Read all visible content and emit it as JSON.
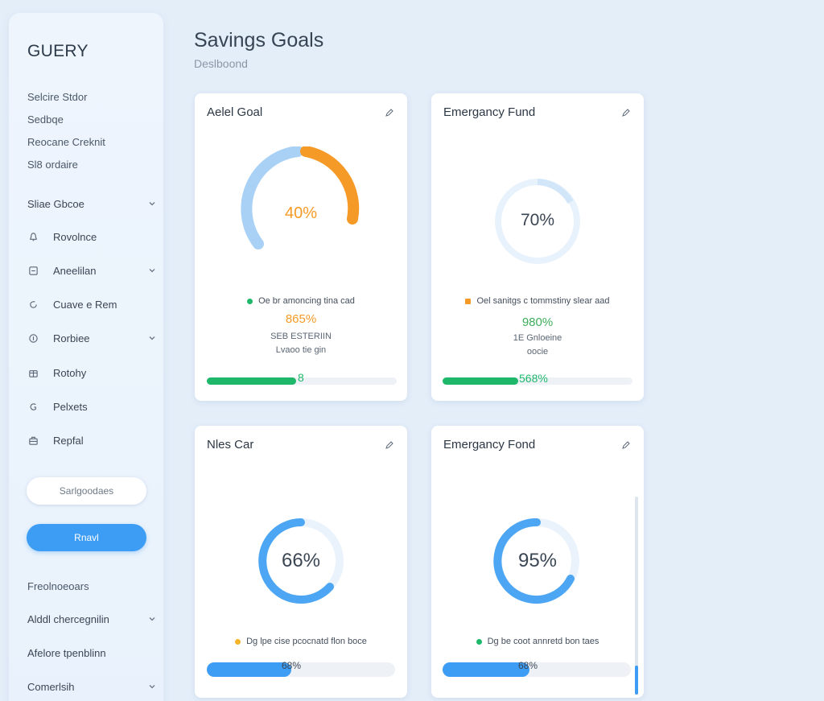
{
  "app": {
    "brand": "GUERY",
    "title": "Savings Goals",
    "subtitle": "Deslboond"
  },
  "sidebar": {
    "top_links": [
      "Selcire Stdor",
      "Sedbqe",
      "Reocane Creknit",
      "Sl8 ordaire"
    ],
    "section_label": "Sliae Gbcoe",
    "items": [
      {
        "label": "Rovolnce",
        "icon": "bell-icon"
      },
      {
        "label": "Aneelilan",
        "icon": "square-icon"
      },
      {
        "label": "Cuave e Rem",
        "icon": "cycle-icon"
      },
      {
        "label": "Rorbiee",
        "icon": "info-icon"
      },
      {
        "label": "Rotohy",
        "icon": "box-icon"
      },
      {
        "label": "Pelxets",
        "icon": "tag-icon"
      },
      {
        "label": "Repfal",
        "icon": "briefcase-icon"
      }
    ],
    "button_outline": "Sarlgoodaes",
    "button_primary": "Rnavl",
    "bottom_links": [
      {
        "label": "Freolnoeoars"
      },
      {
        "label": "Alddl chercegnilin"
      },
      {
        "label": "Afelore tpenblinn"
      },
      {
        "label": "Comerlsih"
      }
    ]
  },
  "cards": [
    {
      "title": "Aelel Goal",
      "ring_value": "40%",
      "ring_percent": 40,
      "legend": "Oe br amoncing tina cad",
      "stat_big": "865%",
      "stat_line1": "SEB ESTERIIN",
      "stat_line2": "Lvaoo tie gin",
      "bar_label": "8",
      "bar_percent": 47
    },
    {
      "title": "Emergancy Fund",
      "ring_value": "70%",
      "ring_percent": 70,
      "legend": "Oel sanitgs c tommstiny slear aad",
      "stat_big": "980%",
      "stat_line1": "1E Gnloeine",
      "stat_line2": "oocie",
      "bar_label": "568%",
      "bar_percent": 40
    },
    {
      "title": "Nles Car",
      "ring_value": "66%",
      "ring_percent": 66,
      "legend": "Dg lpe cise pcocnatd flon boce",
      "bar_label": "68%",
      "bar_percent": 45
    },
    {
      "title": "Emergancy Fond",
      "ring_value": "95%",
      "ring_percent": 95,
      "legend": "Dg be coot annretd bon taes",
      "bar_label": "68%",
      "bar_percent": 46
    }
  ],
  "colors": {
    "accent": "#3d9cf3",
    "orange": "#f59a27",
    "green": "#1fb86a",
    "light_blue": "#a9d1f6"
  }
}
